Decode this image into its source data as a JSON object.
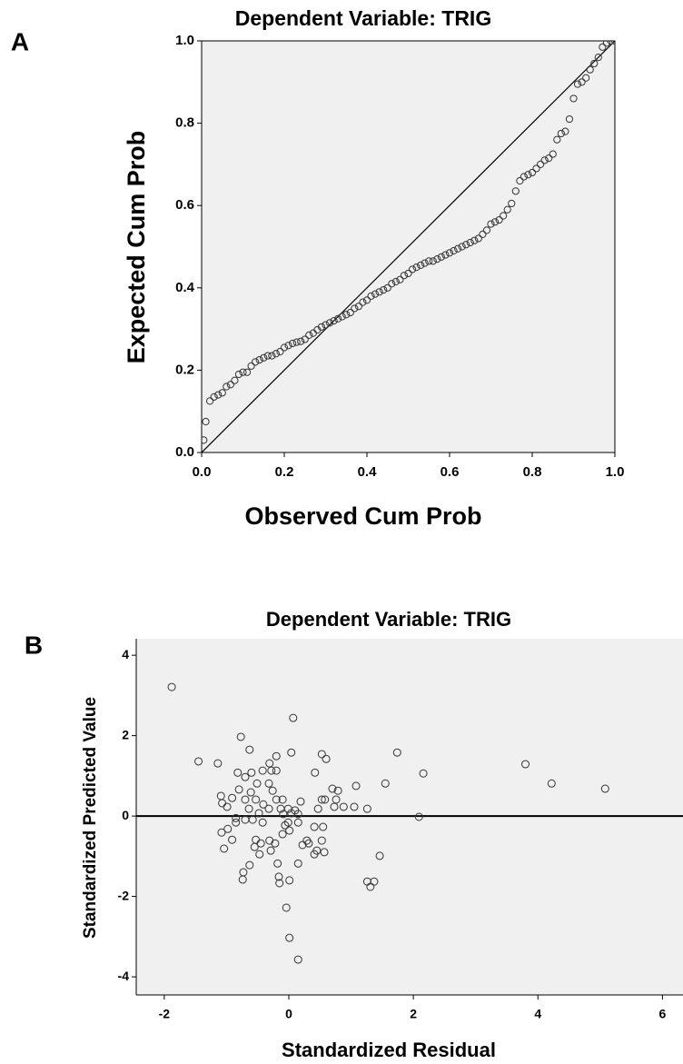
{
  "chart_data": [
    {
      "type": "scatter",
      "panel_label": "A",
      "title": "Dependent Variable: TRIG",
      "x_label": "Observed Cum Prob",
      "y_label": "Expected Cum Prob",
      "reference_line": "diagonal",
      "color": "#333333",
      "background": "#f0f0f0",
      "xlim": [
        0,
        1
      ],
      "ylim": [
        0,
        1
      ],
      "xticks": [
        {
          "value": 0,
          "label": "0.0"
        },
        {
          "value": 0.2,
          "label": "0.2"
        },
        {
          "value": 0.4,
          "label": "0.4"
        },
        {
          "value": 0.6,
          "label": "0.6"
        },
        {
          "value": 0.8,
          "label": "0.8"
        },
        {
          "value": 1,
          "label": "1.0"
        }
      ],
      "yticks": [
        {
          "value": 0,
          "label": "0.0"
        },
        {
          "value": 0.2,
          "label": "0.2"
        },
        {
          "value": 0.4,
          "label": "0.4"
        },
        {
          "value": 0.6,
          "label": "0.6"
        },
        {
          "value": 0.8,
          "label": "0.8"
        },
        {
          "value": 1,
          "label": "1.0"
        }
      ],
      "x": [
        0.005,
        0.01,
        0.02,
        0.03,
        0.04,
        0.05,
        0.06,
        0.07,
        0.08,
        0.09,
        0.1,
        0.11,
        0.12,
        0.13,
        0.14,
        0.15,
        0.16,
        0.17,
        0.18,
        0.19,
        0.2,
        0.21,
        0.22,
        0.23,
        0.24,
        0.25,
        0.26,
        0.27,
        0.28,
        0.29,
        0.3,
        0.31,
        0.32,
        0.33,
        0.34,
        0.35,
        0.36,
        0.37,
        0.38,
        0.39,
        0.4,
        0.41,
        0.42,
        0.43,
        0.44,
        0.45,
        0.46,
        0.47,
        0.48,
        0.49,
        0.5,
        0.51,
        0.52,
        0.53,
        0.54,
        0.55,
        0.56,
        0.57,
        0.58,
        0.59,
        0.6,
        0.61,
        0.62,
        0.63,
        0.64,
        0.65,
        0.66,
        0.67,
        0.68,
        0.69,
        0.7,
        0.71,
        0.72,
        0.73,
        0.74,
        0.75,
        0.76,
        0.77,
        0.78,
        0.79,
        0.8,
        0.81,
        0.82,
        0.83,
        0.84,
        0.85,
        0.86,
        0.87,
        0.88,
        0.89,
        0.9,
        0.91,
        0.92,
        0.93,
        0.94,
        0.95,
        0.96,
        0.97,
        0.98,
        0.99,
        1.0
      ],
      "values": [
        0.03,
        0.075,
        0.125,
        0.135,
        0.14,
        0.145,
        0.16,
        0.165,
        0.175,
        0.19,
        0.195,
        0.195,
        0.21,
        0.22,
        0.225,
        0.23,
        0.235,
        0.235,
        0.24,
        0.245,
        0.255,
        0.26,
        0.265,
        0.268,
        0.27,
        0.275,
        0.285,
        0.29,
        0.298,
        0.305,
        0.31,
        0.315,
        0.32,
        0.325,
        0.33,
        0.335,
        0.34,
        0.35,
        0.355,
        0.365,
        0.37,
        0.38,
        0.385,
        0.39,
        0.395,
        0.4,
        0.41,
        0.415,
        0.42,
        0.43,
        0.435,
        0.445,
        0.45,
        0.455,
        0.46,
        0.465,
        0.465,
        0.47,
        0.475,
        0.48,
        0.485,
        0.49,
        0.495,
        0.5,
        0.505,
        0.51,
        0.515,
        0.52,
        0.53,
        0.54,
        0.555,
        0.56,
        0.565,
        0.575,
        0.59,
        0.605,
        0.635,
        0.66,
        0.67,
        0.675,
        0.68,
        0.69,
        0.7,
        0.71,
        0.715,
        0.725,
        0.76,
        0.775,
        0.78,
        0.81,
        0.86,
        0.895,
        0.9,
        0.91,
        0.93,
        0.945,
        0.96,
        0.985,
        0.995,
        1.0,
        1.0
      ]
    },
    {
      "type": "scatter",
      "panel_label": "B",
      "title": "Dependent Variable: TRIG",
      "x_label": "Standardized Residual",
      "y_label": "Standardized Predicted Value",
      "hline": 0,
      "color": "#333333",
      "background": "#f0f0f0",
      "xlim": [
        -2.45,
        6.33
      ],
      "ylim": [
        -4.45,
        4.41
      ],
      "xticks": [
        -2,
        0,
        2,
        4,
        6
      ],
      "yticks": [
        4,
        2,
        0,
        -2,
        -4
      ],
      "x": [
        -1.88,
        -1.45,
        -1.14,
        -0.77,
        -0.63,
        0.07,
        0.04,
        0.53,
        0.6,
        1.74,
        2.16,
        1.55,
        3.8,
        4.22,
        5.08,
        2.09,
        1.46,
        1.26,
        1.37,
        1.31,
        0.15,
        0.01,
        -0.04,
        0.01,
        -0.74,
        -0.73,
        -0.63,
        -1.04,
        1.08,
        1.26,
        1.05,
        0.79,
        0.76,
        0.73,
        0.88,
        0.42,
        0.55,
        0.53,
        0.57,
        0.41,
        0.45,
        0.32,
        0.22,
        0.15,
        -0.16,
        -0.15,
        -0.18,
        -0.29,
        -0.47,
        -0.55,
        -0.91,
        -1.08,
        -0.98,
        -0.85,
        -0.85,
        -0.99,
        -1.07,
        -1.09,
        -0.91,
        -0.8,
        -0.82,
        -0.7,
        -0.61,
        -0.51,
        -0.42,
        -0.32,
        -0.28,
        -0.2,
        -0.2,
        -0.31,
        -0.6,
        -0.7,
        -0.64,
        -0.53,
        -0.41,
        -0.32,
        -0.48,
        -0.7,
        -0.58,
        -0.42,
        -0.53,
        -0.45,
        -0.31,
        -0.22,
        -0.1,
        -0.06,
        -0.01,
        -0.09,
        -0.13,
        -0.1,
        -0.01,
        0.04,
        0.1,
        0.15,
        0.19,
        0.15,
        0.01,
        -0.2,
        -0.26,
        0.53,
        0.58,
        0.47,
        0.41,
        0.29,
        0.7
      ],
      "values": [
        3.21,
        1.36,
        1.31,
        1.97,
        1.65,
        2.44,
        1.58,
        1.54,
        1.42,
        1.58,
        1.06,
        0.81,
        1.29,
        0.81,
        0.68,
        -0.02,
        -0.99,
        -1.63,
        -1.63,
        -1.76,
        -3.57,
        -3.03,
        -2.28,
        -1.6,
        -1.58,
        -1.4,
        -1.22,
        -0.81,
        0.75,
        0.18,
        0.23,
        0.63,
        0.41,
        0.23,
        0.23,
        1.08,
        -0.27,
        -0.61,
        -0.9,
        -0.95,
        -0.86,
        -0.68,
        -0.72,
        -1.18,
        -1.51,
        -1.67,
        -1.18,
        -0.86,
        -0.95,
        -0.77,
        -0.59,
        -0.41,
        -0.32,
        -0.16,
        -0.05,
        0.23,
        0.32,
        0.5,
        0.45,
        0.66,
        1.08,
        0.97,
        0.59,
        0.81,
        1.13,
        0.81,
        1.13,
        1.13,
        1.49,
        1.31,
        1.08,
        0.41,
        0.18,
        0.41,
        0.29,
        0.18,
        0.07,
        -0.09,
        -0.09,
        -0.16,
        -0.59,
        -0.68,
        -0.61,
        -0.68,
        -0.45,
        -0.23,
        -0.16,
        0.05,
        0.18,
        0.41,
        0.18,
        0.07,
        0.14,
        0.05,
        0.36,
        -0.16,
        -0.36,
        0.41,
        0.63,
        0.41,
        0.41,
        0.18,
        -0.27,
        -0.61,
        0.68
      ]
    }
  ]
}
